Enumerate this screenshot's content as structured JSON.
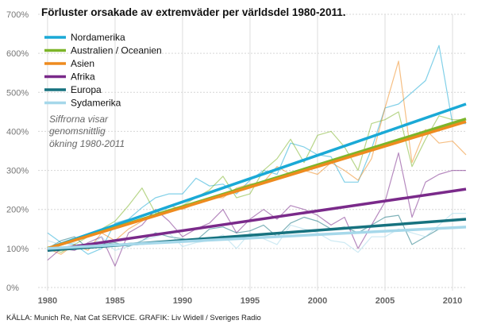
{
  "chart_data": {
    "type": "line",
    "title": "Förluster orsakade av extremväder per världsdel 1980-2011.",
    "note": [
      "Siffrorna visar",
      "genomsnittlig",
      "ökning 1980-2011"
    ],
    "source": "KÄLLA: Munich Re, Nat Cat SERVICE. GRAFIK: Liv Widell / Sveriges Radio",
    "xlim": [
      1979.3,
      2011
    ],
    "ylim": [
      0,
      700
    ],
    "x_ticks": [
      1980,
      1985,
      1990,
      1995,
      2000,
      2005,
      2010
    ],
    "x_tick_labels": [
      "1980",
      "1985",
      "1990",
      "1995",
      "2000",
      "2005",
      "2010"
    ],
    "y_ticks": [
      0,
      100,
      200,
      300,
      400,
      500,
      600,
      700
    ],
    "y_tick_labels": [
      "0%",
      "100%",
      "200%",
      "300%",
      "400%",
      "500%",
      "600%",
      "700%"
    ],
    "x": [
      1980,
      1981,
      1982,
      1983,
      1984,
      1985,
      1986,
      1987,
      1988,
      1989,
      1990,
      1991,
      1992,
      1993,
      1994,
      1995,
      1996,
      1997,
      1998,
      1999,
      2000,
      2001,
      2002,
      2003,
      2004,
      2005,
      2006,
      2007,
      2008,
      2009,
      2010,
      2011
    ],
    "series": [
      {
        "name": "Nordamerika",
        "color": "#1aa9d6",
        "trend": [
          100,
          470
        ],
        "values": [
          140,
          115,
          110,
          85,
          100,
          165,
          175,
          205,
          230,
          240,
          240,
          280,
          260,
          265,
          240,
          275,
          300,
          290,
          370,
          360,
          340,
          335,
          270,
          270,
          355,
          460,
          470,
          500,
          530,
          620,
          420,
          420
        ]
      },
      {
        "name": "Australien / Oceanien",
        "color": "#7db52a",
        "trend": [
          100,
          432
        ],
        "values": [
          105,
          90,
          110,
          130,
          150,
          170,
          210,
          255,
          190,
          200,
          210,
          230,
          250,
          285,
          230,
          240,
          300,
          330,
          380,
          320,
          390,
          400,
          360,
          300,
          420,
          430,
          450,
          310,
          380,
          440,
          430,
          430
        ]
      },
      {
        "name": "Asien",
        "color": "#ee8b1f",
        "trend": [
          100,
          425
        ],
        "values": [
          100,
          85,
          110,
          95,
          140,
          120,
          150,
          170,
          195,
          210,
          200,
          215,
          230,
          230,
          255,
          265,
          270,
          310,
          290,
          300,
          290,
          320,
          300,
          275,
          330,
          460,
          580,
          320,
          405,
          370,
          375,
          340
        ]
      },
      {
        "name": "Afrika",
        "color": "#7a2a8a",
        "trend": [
          95,
          252
        ],
        "values": [
          70,
          100,
          95,
          115,
          130,
          55,
          140,
          160,
          200,
          170,
          130,
          150,
          165,
          200,
          140,
          175,
          200,
          175,
          210,
          200,
          185,
          160,
          180,
          100,
          160,
          220,
          345,
          180,
          270,
          290,
          300,
          300
        ]
      },
      {
        "name": "Europa",
        "color": "#16727f",
        "trend": [
          95,
          175
        ],
        "values": [
          100,
          120,
          130,
          100,
          110,
          115,
          105,
          120,
          140,
          130,
          125,
          120,
          150,
          155,
          140,
          145,
          160,
          130,
          165,
          180,
          170,
          150,
          155,
          140,
          160,
          180,
          185,
          110,
          130,
          150,
          155,
          155
        ]
      },
      {
        "name": "Sydamerika",
        "color": "#a6d8ea",
        "trend": [
          100,
          155
        ],
        "values": [
          120,
          110,
          115,
          100,
          130,
          95,
          105,
          120,
          130,
          140,
          105,
          115,
          120,
          135,
          100,
          140,
          125,
          110,
          160,
          150,
          140,
          120,
          115,
          90,
          130,
          130,
          150,
          140,
          130,
          160,
          190,
          190
        ]
      }
    ]
  }
}
